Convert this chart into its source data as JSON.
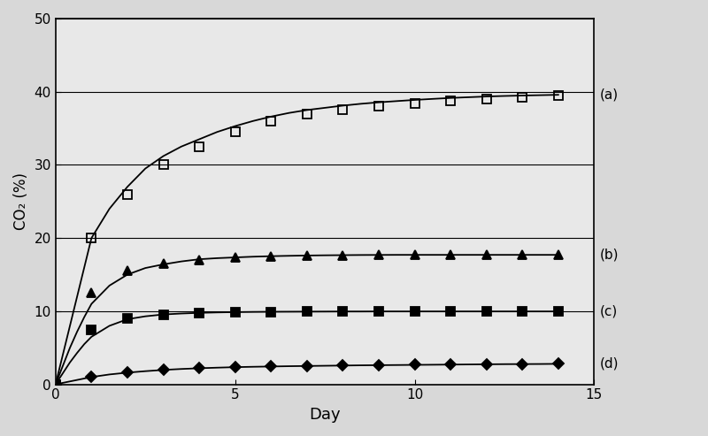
{
  "title": "",
  "xlabel": "Day",
  "ylabel": "CO₂ (%)",
  "xlim": [
    0,
    15
  ],
  "ylim": [
    0,
    50
  ],
  "xticks": [
    0,
    5,
    10,
    15
  ],
  "yticks": [
    0,
    10,
    20,
    30,
    40,
    50
  ],
  "series": [
    {
      "label": "(a)",
      "marker": "s",
      "fillstyle": "none",
      "color": "#000000",
      "markersize": 7,
      "linewidth": 1.3,
      "marker_x": [
        0,
        1,
        2,
        3,
        4,
        5,
        6,
        7,
        8,
        9,
        10,
        11,
        12,
        13,
        14
      ],
      "marker_y": [
        0,
        20,
        26,
        30,
        32.5,
        34.5,
        36.0,
        37.0,
        37.6,
        38.0,
        38.4,
        38.7,
        39.0,
        39.2,
        39.5
      ],
      "line_x": [
        0,
        0.2,
        0.4,
        0.6,
        0.8,
        1.0,
        1.5,
        2.0,
        2.5,
        3.0,
        3.5,
        4.0,
        4.5,
        5.0,
        5.5,
        6.0,
        6.5,
        7.0,
        7.5,
        8.0,
        8.5,
        9.0,
        9.5,
        10.0,
        10.5,
        11.0,
        11.5,
        12.0,
        12.5,
        13.0,
        13.5,
        14.0
      ],
      "line_y": [
        0,
        4,
        8,
        12,
        16,
        20,
        24,
        27,
        29.5,
        31.2,
        32.5,
        33.5,
        34.5,
        35.3,
        36.0,
        36.6,
        37.1,
        37.5,
        37.8,
        38.1,
        38.35,
        38.55,
        38.72,
        38.88,
        39.02,
        39.15,
        39.25,
        39.35,
        39.42,
        39.48,
        39.53,
        39.58
      ]
    },
    {
      "label": "(b)",
      "marker": "^",
      "fillstyle": "full",
      "color": "#000000",
      "markersize": 7,
      "linewidth": 1.3,
      "marker_x": [
        0,
        1,
        2,
        3,
        4,
        5,
        6,
        7,
        8,
        9,
        10,
        11,
        12,
        13,
        14
      ],
      "marker_y": [
        0,
        12.5,
        15.5,
        16.5,
        17.0,
        17.3,
        17.5,
        17.6,
        17.6,
        17.7,
        17.7,
        17.7,
        17.7,
        17.7,
        17.7
      ],
      "line_x": [
        0,
        0.2,
        0.4,
        0.6,
        0.8,
        1.0,
        1.5,
        2.0,
        2.5,
        3.0,
        3.5,
        4.0,
        4.5,
        5.0,
        5.5,
        6.0,
        6.5,
        7.0,
        7.5,
        8.0,
        8.5,
        9.0,
        9.5,
        10.0,
        10.5,
        11.0,
        11.5,
        12.0,
        12.5,
        13.0,
        13.5,
        14.0
      ],
      "line_y": [
        0,
        2.5,
        5.0,
        7.2,
        9.2,
        11.0,
        13.5,
        15.0,
        15.9,
        16.4,
        16.8,
        17.1,
        17.25,
        17.35,
        17.45,
        17.52,
        17.57,
        17.61,
        17.64,
        17.66,
        17.68,
        17.69,
        17.7,
        17.7,
        17.7,
        17.7,
        17.7,
        17.7,
        17.7,
        17.7,
        17.7,
        17.7
      ]
    },
    {
      "label": "(c)",
      "marker": "s",
      "fillstyle": "full",
      "color": "#000000",
      "markersize": 7,
      "linewidth": 1.3,
      "marker_x": [
        0,
        1,
        2,
        3,
        4,
        5,
        6,
        7,
        8,
        9,
        10,
        11,
        12,
        13,
        14
      ],
      "marker_y": [
        0,
        7.5,
        9.0,
        9.5,
        9.7,
        9.85,
        9.9,
        9.93,
        9.95,
        9.96,
        9.97,
        9.97,
        9.97,
        9.97,
        9.97
      ],
      "line_x": [
        0,
        0.2,
        0.4,
        0.6,
        0.8,
        1.0,
        1.5,
        2.0,
        2.5,
        3.0,
        3.5,
        4.0,
        4.5,
        5.0,
        5.5,
        6.0,
        6.5,
        7.0,
        7.5,
        8.0,
        8.5,
        9.0,
        9.5,
        10.0,
        10.5,
        11.0,
        11.5,
        12.0,
        12.5,
        13.0,
        13.5,
        14.0
      ],
      "line_y": [
        0,
        1.5,
        3.0,
        4.3,
        5.5,
        6.5,
        8.0,
        8.9,
        9.3,
        9.55,
        9.68,
        9.77,
        9.83,
        9.87,
        9.9,
        9.92,
        9.93,
        9.94,
        9.95,
        9.96,
        9.96,
        9.97,
        9.97,
        9.97,
        9.97,
        9.97,
        9.97,
        9.97,
        9.97,
        9.97,
        9.97,
        9.97
      ]
    },
    {
      "label": "(d)",
      "marker": "D",
      "fillstyle": "full",
      "color": "#000000",
      "markersize": 6,
      "linewidth": 1.3,
      "marker_x": [
        0,
        1,
        2,
        3,
        4,
        5,
        6,
        7,
        8,
        9,
        10,
        11,
        12,
        13,
        14
      ],
      "marker_y": [
        0,
        1.0,
        1.6,
        2.0,
        2.2,
        2.35,
        2.45,
        2.52,
        2.57,
        2.62,
        2.67,
        2.7,
        2.73,
        2.76,
        2.8
      ],
      "line_x": [
        0,
        0.2,
        0.4,
        0.6,
        0.8,
        1.0,
        1.5,
        2.0,
        2.5,
        3.0,
        3.5,
        4.0,
        4.5,
        5.0,
        5.5,
        6.0,
        6.5,
        7.0,
        7.5,
        8.0,
        8.5,
        9.0,
        9.5,
        10.0,
        10.5,
        11.0,
        11.5,
        12.0,
        12.5,
        13.0,
        13.5,
        14.0
      ],
      "line_y": [
        0,
        0.2,
        0.4,
        0.6,
        0.8,
        1.0,
        1.35,
        1.6,
        1.8,
        1.97,
        2.1,
        2.2,
        2.28,
        2.35,
        2.4,
        2.44,
        2.48,
        2.51,
        2.54,
        2.57,
        2.6,
        2.62,
        2.64,
        2.66,
        2.68,
        2.7,
        2.72,
        2.74,
        2.76,
        2.77,
        2.78,
        2.8
      ]
    }
  ],
  "label_annotations": [
    {
      "label": "(a)",
      "y": 39.58
    },
    {
      "label": "(b)",
      "y": 17.7
    },
    {
      "label": "(c)",
      "y": 9.97
    },
    {
      "label": "(d)",
      "y": 2.8
    }
  ],
  "figsize": [
    8.0,
    4.93
  ],
  "dpi": 100,
  "background_color": "#d8d8d8",
  "plot_bg_color": "#e8e8e8",
  "grid_color": "#000000",
  "grid_linewidth": 0.8
}
